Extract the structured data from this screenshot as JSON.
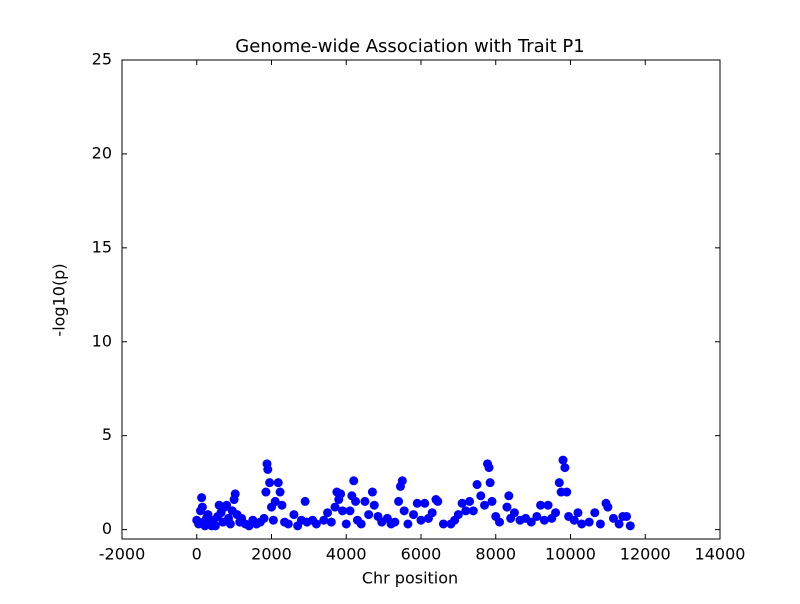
{
  "chart_data": {
    "type": "scatter",
    "title": "Genome-wide Association with Trait P1",
    "x_label": "Chr position",
    "y_label": "-log10(p)",
    "xlim": [
      -2000,
      14000
    ],
    "ylim": [
      -0.5,
      25
    ],
    "xticks": [
      -2000,
      0,
      2000,
      4000,
      6000,
      8000,
      10000,
      12000,
      14000
    ],
    "yticks": [
      0,
      5,
      10,
      15,
      20,
      25
    ],
    "color": "#0000ff",
    "x": [
      0,
      50,
      100,
      130,
      150,
      180,
      220,
      260,
      300,
      350,
      400,
      450,
      500,
      560,
      600,
      650,
      700,
      750,
      800,
      850,
      900,
      950,
      1000,
      1030,
      1080,
      1150,
      1200,
      1300,
      1400,
      1500,
      1600,
      1700,
      1800,
      1850,
      1880,
      1900,
      1950,
      2000,
      2050,
      2100,
      2180,
      2230,
      2280,
      2350,
      2450,
      2600,
      2700,
      2800,
      2900,
      2950,
      3100,
      3200,
      3400,
      3500,
      3600,
      3700,
      3750,
      3800,
      3850,
      3900,
      4000,
      4100,
      4150,
      4200,
      4250,
      4300,
      4400,
      4500,
      4600,
      4700,
      4750,
      4850,
      4950,
      5100,
      5200,
      5300,
      5400,
      5450,
      5500,
      5550,
      5650,
      5800,
      5900,
      6000,
      6100,
      6200,
      6300,
      6400,
      6450,
      6600,
      6800,
      6900,
      7000,
      7100,
      7200,
      7300,
      7400,
      7500,
      7600,
      7700,
      7780,
      7820,
      7850,
      7900,
      8000,
      8100,
      8300,
      8350,
      8400,
      8500,
      8650,
      8800,
      8950,
      9100,
      9200,
      9300,
      9400,
      9500,
      9600,
      9700,
      9750,
      9800,
      9850,
      9900,
      9950,
      10100,
      10200,
      10300,
      10500,
      10650,
      10800,
      10950,
      11000,
      11150,
      11300,
      11400,
      11500,
      11600
    ],
    "values": [
      0.5,
      0.3,
      1.0,
      1.7,
      1.2,
      0.4,
      0.2,
      0.6,
      0.8,
      0.3,
      0.2,
      0.5,
      0.2,
      0.7,
      1.3,
      0.9,
      0.4,
      1.2,
      1.3,
      0.6,
      0.3,
      1.0,
      1.6,
      1.9,
      0.8,
      0.4,
      0.6,
      0.3,
      0.2,
      0.5,
      0.3,
      0.4,
      0.6,
      2.0,
      3.5,
      3.2,
      2.5,
      1.2,
      0.5,
      1.5,
      2.5,
      2.0,
      1.3,
      0.4,
      0.3,
      0.8,
      0.2,
      0.5,
      1.5,
      0.4,
      0.5,
      0.3,
      0.5,
      0.9,
      0.4,
      1.2,
      2.0,
      1.6,
      1.9,
      1.0,
      0.3,
      1.0,
      1.8,
      2.6,
      1.5,
      0.5,
      0.3,
      1.5,
      0.8,
      2.0,
      1.3,
      0.7,
      0.4,
      0.6,
      0.3,
      0.4,
      1.5,
      2.3,
      2.6,
      1.0,
      0.3,
      0.8,
      1.4,
      0.5,
      1.4,
      0.6,
      0.9,
      1.6,
      1.5,
      0.3,
      0.3,
      0.5,
      0.8,
      1.4,
      1.0,
      1.5,
      1.0,
      2.4,
      1.8,
      1.3,
      3.5,
      3.3,
      2.5,
      1.5,
      0.7,
      0.4,
      1.2,
      1.8,
      0.6,
      0.9,
      0.5,
      0.6,
      0.4,
      0.7,
      1.3,
      0.5,
      1.3,
      0.6,
      0.9,
      2.5,
      2.0,
      3.7,
      3.3,
      2.0,
      0.7,
      0.5,
      0.9,
      0.3,
      0.4,
      0.9,
      0.3,
      1.4,
      1.2,
      0.6,
      0.3,
      0.7,
      0.7,
      0.2
    ]
  }
}
